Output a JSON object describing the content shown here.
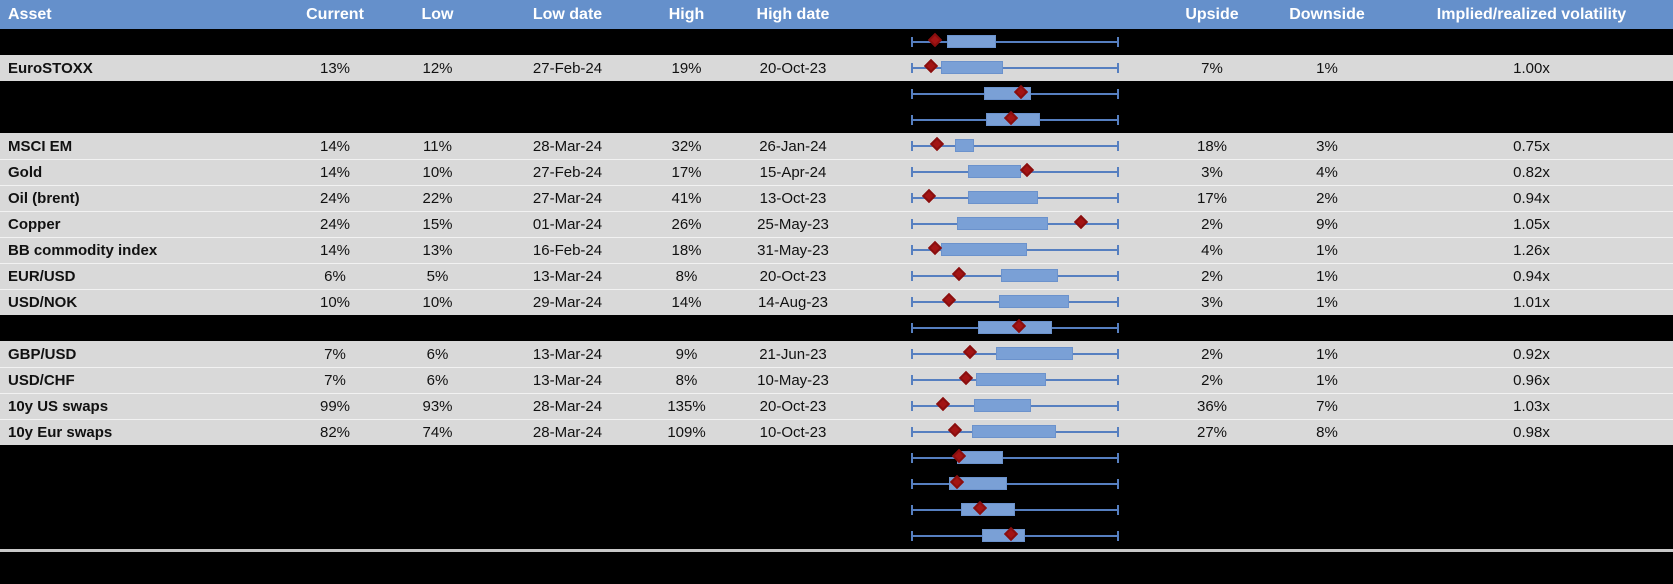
{
  "chart_data": {
    "type": "table",
    "note": "Volatility monitor table with embedded horizontal box plots per asset; whisker_lo/q1/q3/whisker_hi/marker are relative positions 0-1 across the plot width (marker = red diamond = current level)",
    "columns": [
      "Asset",
      "Current",
      "Low",
      "Low date",
      "High",
      "High date",
      "Upside",
      "Downside",
      "Implied/realized volatility"
    ],
    "rows": [
      {
        "kind": "hidden",
        "box": {
          "whisker_lo": 0,
          "q1": 0.17,
          "q3": 0.41,
          "whisker_hi": 1,
          "marker": 0.12
        }
      },
      {
        "kind": "data",
        "asset": "EuroSTOXX",
        "current": "13%",
        "low": "12%",
        "low_date": "27-Feb-24",
        "high": "19%",
        "high_date": "20-Oct-23",
        "upside": "7%",
        "downside": "1%",
        "implied_realized": "1.00x",
        "box": {
          "whisker_lo": 0,
          "q1": 0.14,
          "q3": 0.44,
          "whisker_hi": 1,
          "marker": 0.1
        }
      },
      {
        "kind": "hidden",
        "box": {
          "whisker_lo": 0,
          "q1": 0.35,
          "q3": 0.58,
          "whisker_hi": 1,
          "marker": 0.54
        }
      },
      {
        "kind": "hidden",
        "box": {
          "whisker_lo": 0,
          "q1": 0.36,
          "q3": 0.62,
          "whisker_hi": 1,
          "marker": 0.49
        }
      },
      {
        "kind": "data",
        "asset": "MSCI EM",
        "current": "14%",
        "low": "11%",
        "low_date": "28-Mar-24",
        "high": "32%",
        "high_date": "26-Jan-24",
        "upside": "18%",
        "downside": "3%",
        "implied_realized": "0.75x",
        "box": {
          "whisker_lo": 0,
          "q1": 0.21,
          "q3": 0.3,
          "whisker_hi": 1,
          "marker": 0.13
        }
      },
      {
        "kind": "data",
        "asset": "Gold",
        "current": "14%",
        "low": "10%",
        "low_date": "27-Feb-24",
        "high": "17%",
        "high_date": "15-Apr-24",
        "upside": "3%",
        "downside": "4%",
        "implied_realized": "0.82x",
        "box": {
          "whisker_lo": 0,
          "q1": 0.27,
          "q3": 0.53,
          "whisker_hi": 1,
          "marker": 0.57
        }
      },
      {
        "kind": "data",
        "asset": "Oil (brent)",
        "current": "24%",
        "low": "22%",
        "low_date": "27-Mar-24",
        "high": "41%",
        "high_date": "13-Oct-23",
        "upside": "17%",
        "downside": "2%",
        "implied_realized": "0.94x",
        "box": {
          "whisker_lo": 0,
          "q1": 0.27,
          "q3": 0.61,
          "whisker_hi": 1,
          "marker": 0.09
        }
      },
      {
        "kind": "data",
        "asset": "Copper",
        "current": "24%",
        "low": "15%",
        "low_date": "01-Mar-24",
        "high": "26%",
        "high_date": "25-May-23",
        "upside": "2%",
        "downside": "9%",
        "implied_realized": "1.05x",
        "box": {
          "whisker_lo": 0,
          "q1": 0.22,
          "q3": 0.66,
          "whisker_hi": 1,
          "marker": 0.83
        }
      },
      {
        "kind": "data",
        "asset": "BB commodity index",
        "current": "14%",
        "low": "13%",
        "low_date": "16-Feb-24",
        "high": "18%",
        "high_date": "31-May-23",
        "upside": "4%",
        "downside": "1%",
        "implied_realized": "1.26x",
        "box": {
          "whisker_lo": 0,
          "q1": 0.14,
          "q3": 0.56,
          "whisker_hi": 1,
          "marker": 0.12
        }
      },
      {
        "kind": "data",
        "asset": "EUR/USD",
        "current": "6%",
        "low": "5%",
        "low_date": "13-Mar-24",
        "high": "8%",
        "high_date": "20-Oct-23",
        "upside": "2%",
        "downside": "1%",
        "implied_realized": "0.94x",
        "box": {
          "whisker_lo": 0,
          "q1": 0.43,
          "q3": 0.71,
          "whisker_hi": 1,
          "marker": 0.24
        }
      },
      {
        "kind": "data",
        "asset": "USD/NOK",
        "current": "10%",
        "low": "10%",
        "low_date": "29-Mar-24",
        "high": "14%",
        "high_date": "14-Aug-23",
        "upside": "3%",
        "downside": "1%",
        "implied_realized": "1.01x",
        "box": {
          "whisker_lo": 0,
          "q1": 0.42,
          "q3": 0.76,
          "whisker_hi": 1,
          "marker": 0.19
        }
      },
      {
        "kind": "hidden",
        "box": {
          "whisker_lo": 0,
          "q1": 0.32,
          "q3": 0.68,
          "whisker_hi": 1,
          "marker": 0.53
        }
      },
      {
        "kind": "data",
        "asset": "GBP/USD",
        "current": "7%",
        "low": "6%",
        "low_date": "13-Mar-24",
        "high": "9%",
        "high_date": "21-Jun-23",
        "upside": "2%",
        "downside": "1%",
        "implied_realized": "0.92x",
        "box": {
          "whisker_lo": 0,
          "q1": 0.41,
          "q3": 0.78,
          "whisker_hi": 1,
          "marker": 0.29
        }
      },
      {
        "kind": "data",
        "asset": "USD/CHF",
        "current": "7%",
        "low": "6%",
        "low_date": "13-Mar-24",
        "high": "8%",
        "high_date": "10-May-23",
        "upside": "2%",
        "downside": "1%",
        "implied_realized": "0.96x",
        "box": {
          "whisker_lo": 0,
          "q1": 0.31,
          "q3": 0.65,
          "whisker_hi": 1,
          "marker": 0.27
        }
      },
      {
        "kind": "data",
        "asset": "10y US swaps",
        "current": "99%",
        "low": "93%",
        "low_date": "28-Mar-24",
        "high": "135%",
        "high_date": "20-Oct-23",
        "upside": "36%",
        "downside": "7%",
        "implied_realized": "1.03x",
        "box": {
          "whisker_lo": 0,
          "q1": 0.3,
          "q3": 0.58,
          "whisker_hi": 1,
          "marker": 0.16
        }
      },
      {
        "kind": "data",
        "asset": "10y Eur swaps",
        "current": "82%",
        "low": "74%",
        "low_date": "28-Mar-24",
        "high": "109%",
        "high_date": "10-Oct-23",
        "upside": "27%",
        "downside": "8%",
        "implied_realized": "0.98x",
        "box": {
          "whisker_lo": 0,
          "q1": 0.29,
          "q3": 0.7,
          "whisker_hi": 1,
          "marker": 0.22
        }
      },
      {
        "kind": "hidden",
        "box": {
          "whisker_lo": 0,
          "q1": 0.22,
          "q3": 0.44,
          "whisker_hi": 1,
          "marker": 0.24
        }
      },
      {
        "kind": "hidden",
        "box": {
          "whisker_lo": 0,
          "q1": 0.18,
          "q3": 0.46,
          "whisker_hi": 1,
          "marker": 0.23
        }
      },
      {
        "kind": "hidden",
        "box": {
          "whisker_lo": 0,
          "q1": 0.24,
          "q3": 0.5,
          "whisker_hi": 1,
          "marker": 0.34
        }
      },
      {
        "kind": "hidden",
        "box": {
          "whisker_lo": 0,
          "q1": 0.34,
          "q3": 0.55,
          "whisker_hi": 1,
          "marker": 0.49
        }
      }
    ]
  },
  "colors": {
    "header_bg": "#6590cb",
    "header_text": "#ffffff",
    "row_bg": "#d9d9d9",
    "hidden_row_bg": "#000000",
    "text": "#111111",
    "box_fill": "#7aa0d6",
    "box_border": "#6b92cc",
    "whisker": "#567fc0",
    "marker_fill": "#a31414",
    "marker_border": "#8a0e0e",
    "divider": "#c9c9c9",
    "footer_bg": "#000000"
  }
}
